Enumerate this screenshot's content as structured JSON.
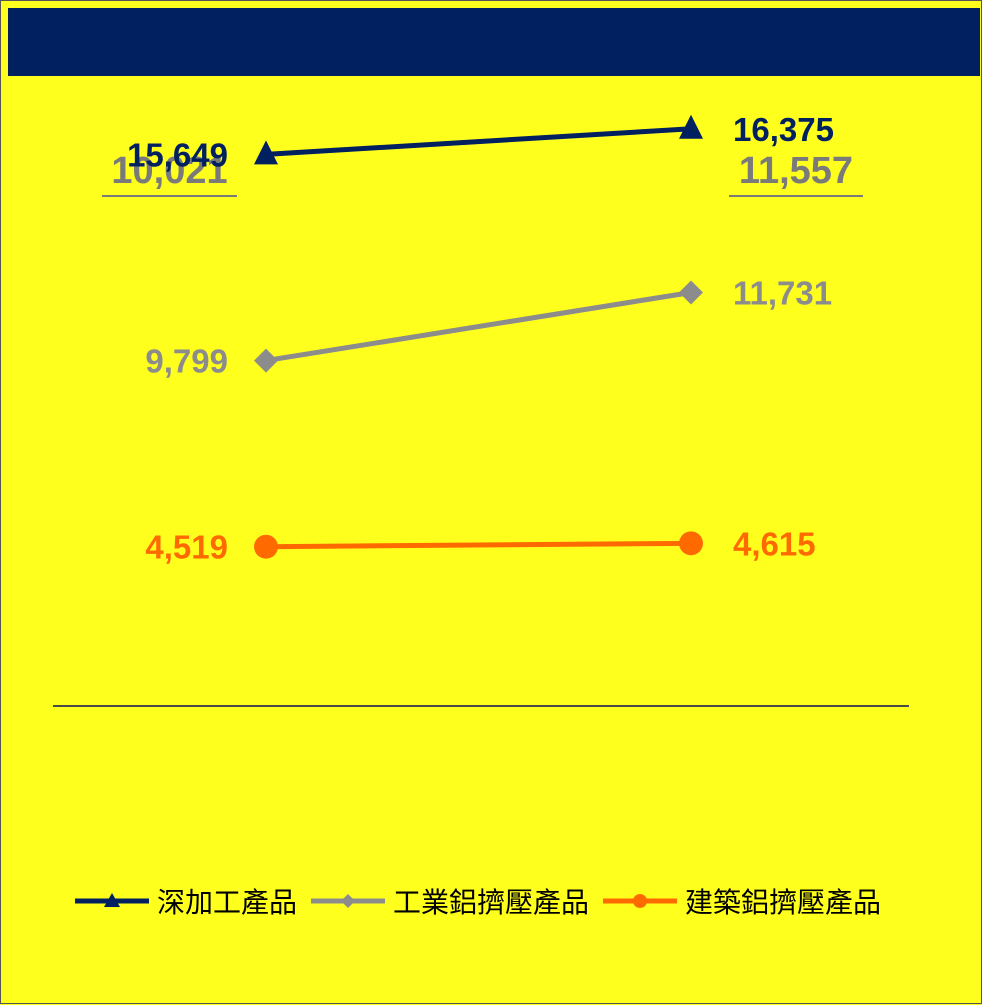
{
  "colors": {
    "background": "#FFFF1E",
    "band": "#002060",
    "series1": "#002060",
    "series2": "#8C8C8C",
    "series3": "#FF6A00",
    "totals": "#7A7A7A"
  },
  "totals": [
    "10,021",
    "11,557"
  ],
  "chart_data": {
    "type": "line",
    "x": [
      "",
      ""
    ],
    "series": [
      {
        "name": "深加工產品",
        "values": [
          15649,
          16375
        ],
        "labels": [
          "15,649",
          "16,375"
        ],
        "color": "#002060",
        "marker": "triangle"
      },
      {
        "name": "工業鋁擠壓產品",
        "values": [
          9799,
          11731
        ],
        "labels": [
          "9,799",
          "11,731"
        ],
        "color": "#8C8C8C",
        "marker": "diamond"
      },
      {
        "name": "建築鋁擠壓產品",
        "values": [
          4519,
          4615
        ],
        "labels": [
          "4,519",
          "4,615"
        ],
        "color": "#FF6A00",
        "marker": "circle"
      }
    ],
    "legend_position": "bottom",
    "grid": false
  }
}
